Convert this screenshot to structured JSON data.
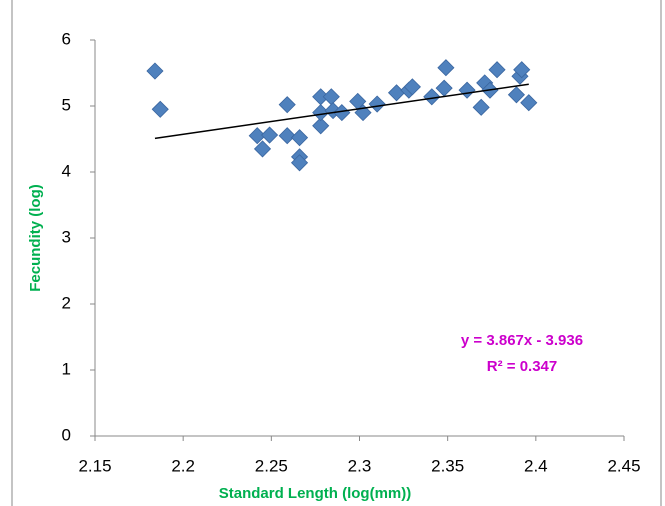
{
  "chart_data": {
    "type": "scatter",
    "x_label": "Standard Length (log(mm))",
    "y_label": "Fecundity (log)",
    "annotations": [
      "y = 3.867x - 3.936",
      "R² = 0.347"
    ],
    "trendline": {
      "slope": 3.867,
      "intercept": -3.936
    },
    "xlim": [
      2.15,
      2.45
    ],
    "ylim": [
      0,
      6
    ],
    "xticks": [
      2.15,
      2.2,
      2.25,
      2.3,
      2.35,
      2.4,
      2.45
    ],
    "yticks": [
      0,
      1,
      2,
      3,
      4,
      5,
      6
    ],
    "grid": false,
    "series": [
      {
        "color": "#4f81bd",
        "x": [
          2.184,
          2.187,
          2.242,
          2.245,
          2.249,
          2.259,
          2.259,
          2.266,
          2.266,
          2.266,
          2.278,
          2.278,
          2.278,
          2.284,
          2.285,
          2.29,
          2.299,
          2.302,
          2.31,
          2.321,
          2.328,
          2.33,
          2.341,
          2.348,
          2.349,
          2.361,
          2.369,
          2.371,
          2.374,
          2.378,
          2.389,
          2.391,
          2.392,
          2.396
        ],
        "values": [
          5.53,
          4.95,
          4.55,
          4.35,
          4.56,
          5.02,
          4.55,
          4.52,
          4.23,
          4.14,
          4.7,
          5.14,
          4.9,
          5.14,
          4.93,
          4.9,
          5.07,
          4.9,
          5.03,
          5.2,
          5.24,
          5.29,
          5.14,
          5.27,
          5.58,
          5.24,
          4.98,
          5.35,
          5.24,
          5.55,
          5.17,
          5.45,
          5.55,
          5.05
        ]
      }
    ]
  }
}
